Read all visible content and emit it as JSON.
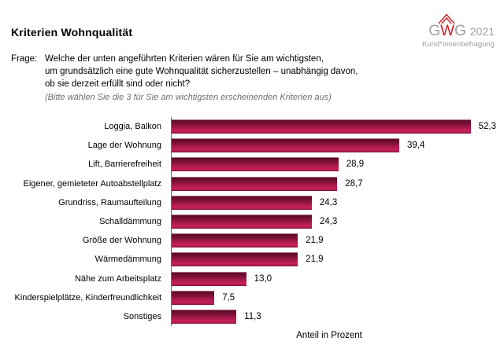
{
  "header": {
    "title": "Kriterien Wohnqualität",
    "frage_label": "Frage:",
    "frage_lines": [
      "Welche der unten angeführten Kriterien wären für Sie am wichtigsten,",
      "um grundsätzlich eine gute Wohnqualität sicherzustellen – unabhängig davon,",
      "ob sie derzeit erfüllt sind oder nicht?"
    ],
    "frage_note": "(Bitte wählen Sie die 3 für Sie am wichtigsten erscheinenden Kriterien aus)"
  },
  "logo": {
    "letter_g1": "G",
    "letter_w": "W",
    "letter_g2": "G",
    "year": "2021",
    "subtitle": "Kund*innenbefragung",
    "red": "#cd2129",
    "gray": "#a0a0a0"
  },
  "chart_data": {
    "type": "bar",
    "orientation": "horizontal",
    "title": "Kriterien Wohnqualität",
    "categories": [
      "Loggia, Balkon",
      "Lage der Wohnung",
      "Lift, Barrierefreiheit",
      "Eigener, gemieteter Autoabstellplatz",
      "Grundriss, Raumaufteilung",
      "Schalldämmung",
      "Größe der Wohnung",
      "Wärmedämmung",
      "Nähe zum Arbeitsplatz",
      "Kinderspielplätze, Kinderfreundlichkeit",
      "Sonstiges"
    ],
    "values": [
      52.3,
      39.4,
      28.9,
      28.7,
      24.3,
      24.3,
      21.9,
      21.9,
      13.0,
      7.5,
      11.3
    ],
    "value_labels": [
      "52,3",
      "39,4",
      "28,9",
      "28,7",
      "24,3",
      "24,3",
      "21,9",
      "21,9",
      "13,0",
      "7,5",
      "11,3"
    ],
    "xlabel": "Anteil in Prozent",
    "xlim": [
      0,
      55
    ],
    "grid": false,
    "legend": false,
    "bar_color_dark": "#5c0b26",
    "bar_color_bright": "#c62159",
    "value_labels_shown": true,
    "decimal_separator": ","
  }
}
